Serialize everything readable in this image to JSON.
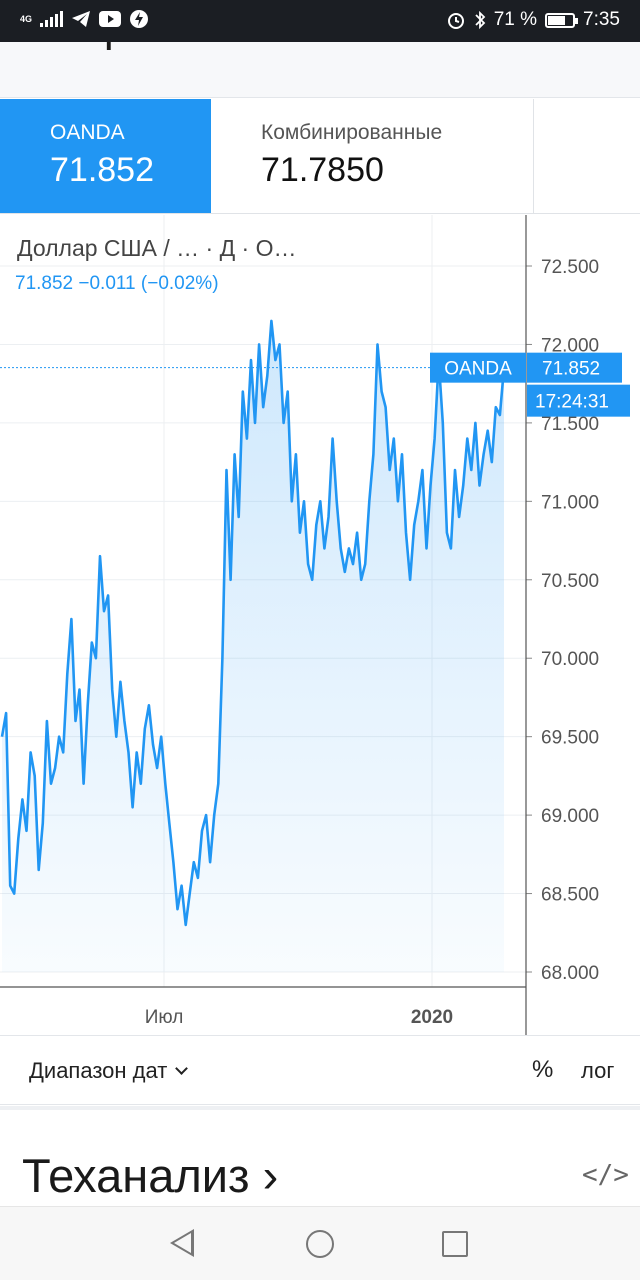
{
  "status": {
    "network": "4G",
    "battery_text": "71 %",
    "battery_level": 0.71,
    "time": "7:35"
  },
  "header": {
    "title": "Форекс"
  },
  "tabs": [
    {
      "name": "OANDA",
      "value": "71.852",
      "active": true
    },
    {
      "name": "Комбинированные",
      "value": "71.7850",
      "active": false
    }
  ],
  "chart": {
    "title": "Доллар США / …  · Д  · О…",
    "quote": "71.852  −0.011 (−0.02%)",
    "last_label": "OANDA",
    "last_value": "71.852",
    "timer": "17:24:31",
    "accent": "#2196f3"
  },
  "chart_data": {
    "type": "area",
    "y_ticks": [
      "72.500",
      "72.000",
      "71.500",
      "71.000",
      "70.500",
      "70.000",
      "69.500",
      "69.000",
      "68.500",
      "68.000"
    ],
    "ylim": [
      68.0,
      72.5
    ],
    "x_ticks": [
      "Июл",
      "2020"
    ],
    "last": 71.852,
    "series": [
      {
        "values": [
          69.5,
          69.65,
          68.55,
          68.5,
          68.85,
          69.1,
          68.9,
          69.4,
          69.25,
          68.65,
          68.95,
          69.6,
          69.2,
          69.3,
          69.5,
          69.4,
          69.9,
          70.25,
          69.6,
          69.8,
          69.2,
          69.7,
          70.1,
          70.0,
          70.65,
          70.3,
          70.4,
          69.8,
          69.5,
          69.85,
          69.6,
          69.4,
          69.05,
          69.4,
          69.2,
          69.55,
          69.7,
          69.45,
          69.3,
          69.5,
          69.2,
          68.95,
          68.7,
          68.4,
          68.55,
          68.3,
          68.5,
          68.7,
          68.6,
          68.9,
          69.0,
          68.7,
          69.0,
          69.2,
          70.0,
          71.2,
          70.5,
          71.3,
          70.9,
          71.7,
          71.4,
          71.9,
          71.5,
          72.0,
          71.6,
          71.8,
          72.15,
          71.9,
          72.0,
          71.5,
          71.7,
          71.0,
          71.3,
          70.8,
          71.0,
          70.6,
          70.5,
          70.85,
          71.0,
          70.7,
          70.9,
          71.4,
          71.0,
          70.7,
          70.55,
          70.7,
          70.6,
          70.8,
          70.5,
          70.6,
          71.0,
          71.3,
          72.0,
          71.7,
          71.6,
          71.2,
          71.4,
          71.0,
          71.3,
          70.8,
          70.5,
          70.85,
          71.0,
          71.2,
          70.7,
          71.1,
          71.4,
          71.9,
          71.5,
          70.8,
          70.7,
          71.2,
          70.9,
          71.1,
          71.4,
          71.2,
          71.5,
          71.1,
          71.3,
          71.45,
          71.25,
          71.6,
          71.55,
          71.852
        ]
      }
    ]
  },
  "controls": {
    "date_range": "Диапазон дат",
    "percent": "%",
    "log": "лог"
  },
  "section": {
    "title": "Теханализ ›",
    "code_icon": "</>"
  }
}
